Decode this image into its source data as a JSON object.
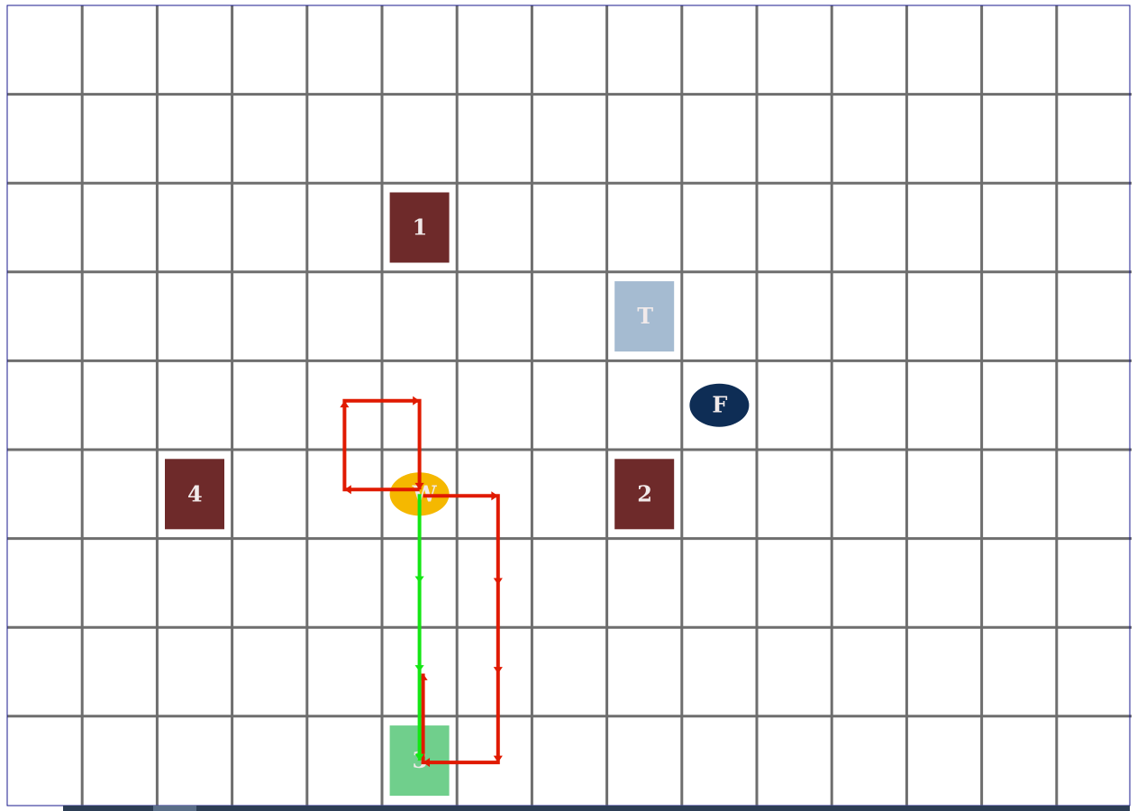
{
  "grid": {
    "columns": 15,
    "rows": 9
  },
  "colors": {
    "grid_line": "#6e6e6e",
    "frame": "#1a1a8c",
    "obstacle": "#6e2a2a",
    "target": "#a5bbd1",
    "goal": "#70cf8c",
    "player": "#f5b800",
    "flag": "#0e2d55",
    "path_red": "#e01a00",
    "path_green": "#14e614",
    "label_light": "#f1eaea"
  },
  "pieces": [
    {
      "id": "obstacle-1",
      "kind": "obstacle",
      "label": "1",
      "col": 5,
      "row": 2
    },
    {
      "id": "target-T",
      "kind": "target",
      "label": "T",
      "col": 8,
      "row": 3
    },
    {
      "id": "flag-F",
      "kind": "flag",
      "label": "F",
      "col": 9,
      "row": 4
    },
    {
      "id": "obstacle-4",
      "kind": "obstacle",
      "label": "4",
      "col": 2,
      "row": 5
    },
    {
      "id": "player-W",
      "kind": "player",
      "label": "W",
      "col": 5,
      "row": 5
    },
    {
      "id": "obstacle-2",
      "kind": "obstacle",
      "label": "2",
      "col": 8,
      "row": 5
    },
    {
      "id": "goal-3",
      "kind": "goal",
      "label": "3",
      "col": 5,
      "row": 8
    }
  ],
  "paths": {
    "red_loop_left": {
      "color": "path_red",
      "cells": [
        [
          5,
          5
        ],
        [
          4,
          5
        ],
        [
          4,
          4
        ],
        [
          5,
          4
        ],
        [
          5,
          5
        ]
      ]
    },
    "red_loop_right": {
      "color": "path_red",
      "cells": [
        [
          5,
          5
        ],
        [
          6,
          5
        ],
        [
          6,
          6
        ],
        [
          6,
          7
        ],
        [
          6,
          8
        ],
        [
          5,
          8
        ],
        [
          5,
          7
        ]
      ]
    },
    "green_route": {
      "color": "path_green",
      "cells": [
        [
          5,
          5
        ],
        [
          5,
          6
        ],
        [
          5,
          7
        ],
        [
          5,
          8
        ]
      ]
    }
  }
}
